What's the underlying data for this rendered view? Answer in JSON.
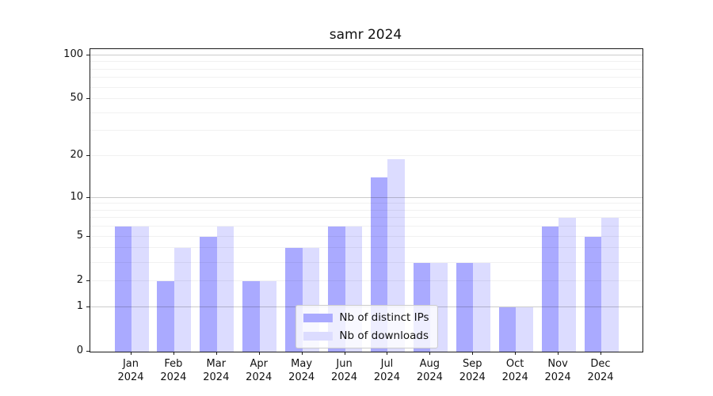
{
  "chart_data": {
    "type": "bar",
    "title": "samr 2024",
    "categories": [
      "Jan 2024",
      "Feb 2024",
      "Mar 2024",
      "Apr 2024",
      "May 2024",
      "Jun 2024",
      "Jul 2024",
      "Aug 2024",
      "Sep 2024",
      "Oct 2024",
      "Nov 2024",
      "Dec 2024"
    ],
    "series": [
      {
        "name": "Nb of distinct IPs",
        "color": "#aaaaff",
        "values": [
          6,
          2,
          5,
          2,
          4,
          6,
          14,
          3,
          3,
          1,
          6,
          5
        ]
      },
      {
        "name": "Nb of downloads",
        "color": "#dcdcff",
        "values": [
          6,
          4,
          6,
          2,
          4,
          6,
          19,
          3,
          3,
          1,
          7,
          7
        ]
      }
    ],
    "y_scale": "log1p",
    "ylim": [
      0,
      110
    ],
    "y_ticks": [
      0,
      1,
      2,
      5,
      10,
      20,
      50,
      100
    ],
    "y_major_grid": [
      1,
      10,
      100
    ],
    "y_minor_ticks": [
      3,
      4,
      6,
      7,
      8,
      9,
      30,
      40,
      60,
      70,
      80,
      90
    ],
    "grid": true,
    "legend_position": "lower center",
    "axis_color": "#1a1a1a",
    "major_grid_color": "#cccccc",
    "minor_grid_color": "#f1f1f1"
  }
}
